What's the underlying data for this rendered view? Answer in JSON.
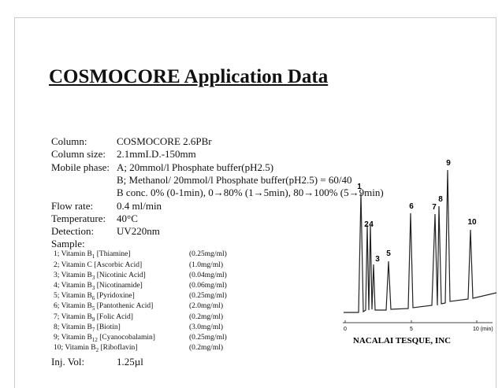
{
  "title": "COSMOCORE Application Data",
  "conditions": [
    {
      "label": "Column:",
      "lines": [
        "COSMOCORE 2.6PBr"
      ]
    },
    {
      "label": "Column size:",
      "lines": [
        "2.1mmI.D.-150mm"
      ]
    },
    {
      "label": "Mobile phase:",
      "lines": [
        "A; 20mmol/l Phosphate buffer(pH2.5)",
        "B; Methanol/ 20mmol/l Phosphate buffer(pH2.5) = 60/40",
        "B conc. 0% (0-1min), 0→80% (1→5min), 80→100% (5→9min)"
      ]
    },
    {
      "label": "Flow rate:",
      "lines": [
        "0.4 ml/min"
      ]
    },
    {
      "label": "Temperature:",
      "lines": [
        "40°C"
      ]
    },
    {
      "label": "Detection:",
      "lines": [
        "UV220nm"
      ]
    }
  ],
  "sample_heading": "Sample:",
  "samples": [
    {
      "name": "1; Vitamin B",
      "sub": "1",
      "rest": " [Thiamine]",
      "conc": "(0.25mg/ml)"
    },
    {
      "name": "2; Vitamin C [Ascorbic Acid]",
      "sub": "",
      "rest": "",
      "conc": "(1.0mg/ml)"
    },
    {
      "name": "3; Vitamin B",
      "sub": "3",
      "rest": " [Nicotinic Acid]",
      "conc": "(0.04mg/ml)"
    },
    {
      "name": "4; Vitamin B",
      "sub": "3",
      "rest": " [Nicotinamide]",
      "conc": "(0.06mg/ml)"
    },
    {
      "name": "5; Vitamin B",
      "sub": "6",
      "rest": " [Pyridoxine]",
      "conc": "(0.25mg/ml)"
    },
    {
      "name": "6; Vitamin B",
      "sub": "5",
      "rest": " [Pantothenic Acid]",
      "conc": "(2.0mg/ml)"
    },
    {
      "name": "7; Vitamin B",
      "sub": "9",
      "rest": " [Folic Acid]",
      "conc": "(0.2mg/ml)"
    },
    {
      "name": "8; Vitamin B",
      "sub": "7",
      "rest": " [Biotin]",
      "conc": "(3.0mg/ml)"
    },
    {
      "name": "9; Vitamin B",
      "sub": "12",
      "rest": " [Cyanocobalamin]",
      "conc": "(0.25mg/ml)"
    },
    {
      "name": "10; Vitamin B",
      "sub": "2",
      "rest": " [Riboflavin]",
      "conc": "(0.2mg/ml)"
    }
  ],
  "injection": {
    "label": "Inj. Vol:",
    "value": "1.25µl"
  },
  "chromatogram": {
    "peak_labels": [
      "1",
      "2",
      "4",
      "3",
      "5",
      "6",
      "7",
      "8",
      "9",
      "10"
    ],
    "axis_labels": [
      "0",
      "5",
      "10 (min)"
    ]
  },
  "company": "NACALAI TESQUE, INC"
}
